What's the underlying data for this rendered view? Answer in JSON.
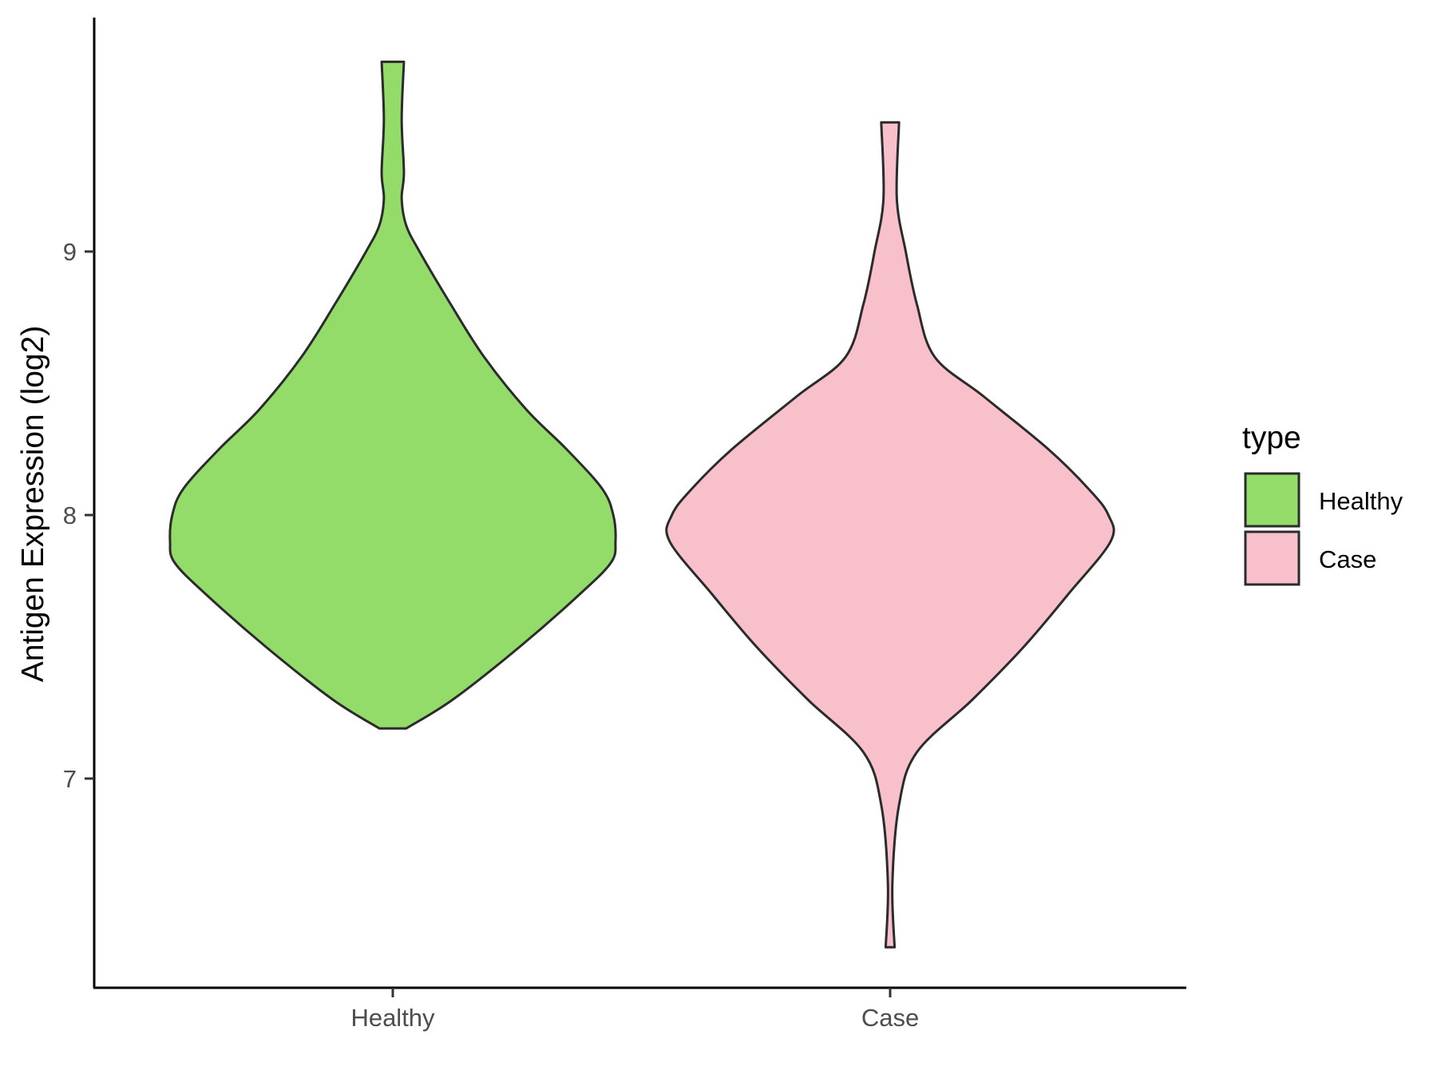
{
  "chart_data": {
    "type": "violin",
    "title": "",
    "xlabel": "",
    "ylabel": "Antigen Expression (log2)",
    "ylim": [
      6.1,
      9.9
    ],
    "yticks": [
      7,
      8,
      9
    ],
    "grid": false,
    "legend": {
      "title": "type",
      "position": "right",
      "entries": [
        "Healthy",
        "Case"
      ]
    },
    "categories": [
      "Healthy",
      "Case"
    ],
    "series": [
      {
        "name": "Healthy",
        "color": "#93dc6a",
        "min": 7.19,
        "max": 9.72,
        "density_profile": [
          [
            7.19,
            0.06
          ],
          [
            7.3,
            0.27
          ],
          [
            7.5,
            0.57
          ],
          [
            7.7,
            0.84
          ],
          [
            7.82,
            0.98
          ],
          [
            7.9,
            1.0
          ],
          [
            8.0,
            0.99
          ],
          [
            8.1,
            0.94
          ],
          [
            8.25,
            0.78
          ],
          [
            8.4,
            0.6
          ],
          [
            8.6,
            0.41
          ],
          [
            8.8,
            0.26
          ],
          [
            9.0,
            0.12
          ],
          [
            9.1,
            0.06
          ],
          [
            9.2,
            0.04
          ],
          [
            9.3,
            0.05
          ],
          [
            9.5,
            0.04
          ],
          [
            9.72,
            0.05
          ]
        ]
      },
      {
        "name": "Case",
        "color": "#f7c0cb",
        "min": 6.36,
        "max": 9.49,
        "density_profile": [
          [
            6.36,
            0.02
          ],
          [
            6.6,
            0.01
          ],
          [
            6.9,
            0.04
          ],
          [
            7.1,
            0.12
          ],
          [
            7.3,
            0.37
          ],
          [
            7.5,
            0.6
          ],
          [
            7.7,
            0.8
          ],
          [
            7.9,
            0.99
          ],
          [
            8.0,
            0.98
          ],
          [
            8.1,
            0.89
          ],
          [
            8.25,
            0.71
          ],
          [
            8.45,
            0.42
          ],
          [
            8.6,
            0.2
          ],
          [
            8.8,
            0.12
          ],
          [
            9.0,
            0.07
          ],
          [
            9.2,
            0.03
          ],
          [
            9.49,
            0.04
          ]
        ]
      }
    ]
  }
}
